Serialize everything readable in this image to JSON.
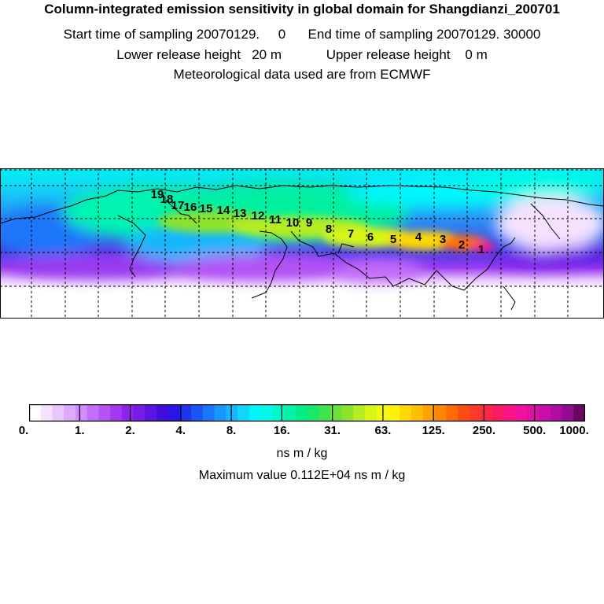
{
  "header": {
    "title": "Column-integrated emission sensitivity in global domain for Shangdianzi_200701",
    "line1": "Start time of sampling 20070129.     0      End time of sampling 20070129. 30000",
    "line2": "Lower release height   20 m            Upper release height    0 m",
    "line3": "Meteorological data used are from ECMWF"
  },
  "colorbar": {
    "ticks": [
      "0.",
      "1.",
      "2.",
      "4.",
      "8.",
      "16.",
      "31.",
      "63.",
      "125.",
      "250.",
      "500.",
      "1000."
    ],
    "colors": [
      "#ffffff",
      "#f4e2ff",
      "#eac5ff",
      "#dfa8ff",
      "#d28cff",
      "#c46ffa",
      "#b553f5",
      "#a637f0",
      "#8e22ee",
      "#761be8",
      "#5c14e2",
      "#420ddb",
      "#2a14e6",
      "#2034ee",
      "#1a55f5",
      "#1a76fa",
      "#1896fb",
      "#14b6fc",
      "#0fd6fd",
      "#00f6fd",
      "#00fce8",
      "#00f9c8",
      "#00f4a8",
      "#00ee88",
      "#1ae86a",
      "#3ee44a",
      "#66e23a",
      "#8ee22a",
      "#b6ec20",
      "#d8f614",
      "#f2fa10",
      "#fff208",
      "#ffd800",
      "#ffbe00",
      "#ffa200",
      "#ff8600",
      "#ff6a08",
      "#ff4e14",
      "#ff3a28",
      "#ff2846",
      "#ff1a66",
      "#ff1488",
      "#f2109c",
      "#de10a6",
      "#c80ea8",
      "#b00ca2",
      "#940a90",
      "#6a0664"
    ],
    "units": "ns m / kg",
    "max_value": "Maximum value  0.112E+04 ns m / kg"
  },
  "trajectory_labels": [
    "1",
    "2",
    "3",
    "4",
    "5",
    "6",
    "7",
    "8",
    "9",
    "10",
    "11",
    "12",
    "13",
    "14",
    "15",
    "16",
    "17",
    "18",
    "19"
  ]
}
